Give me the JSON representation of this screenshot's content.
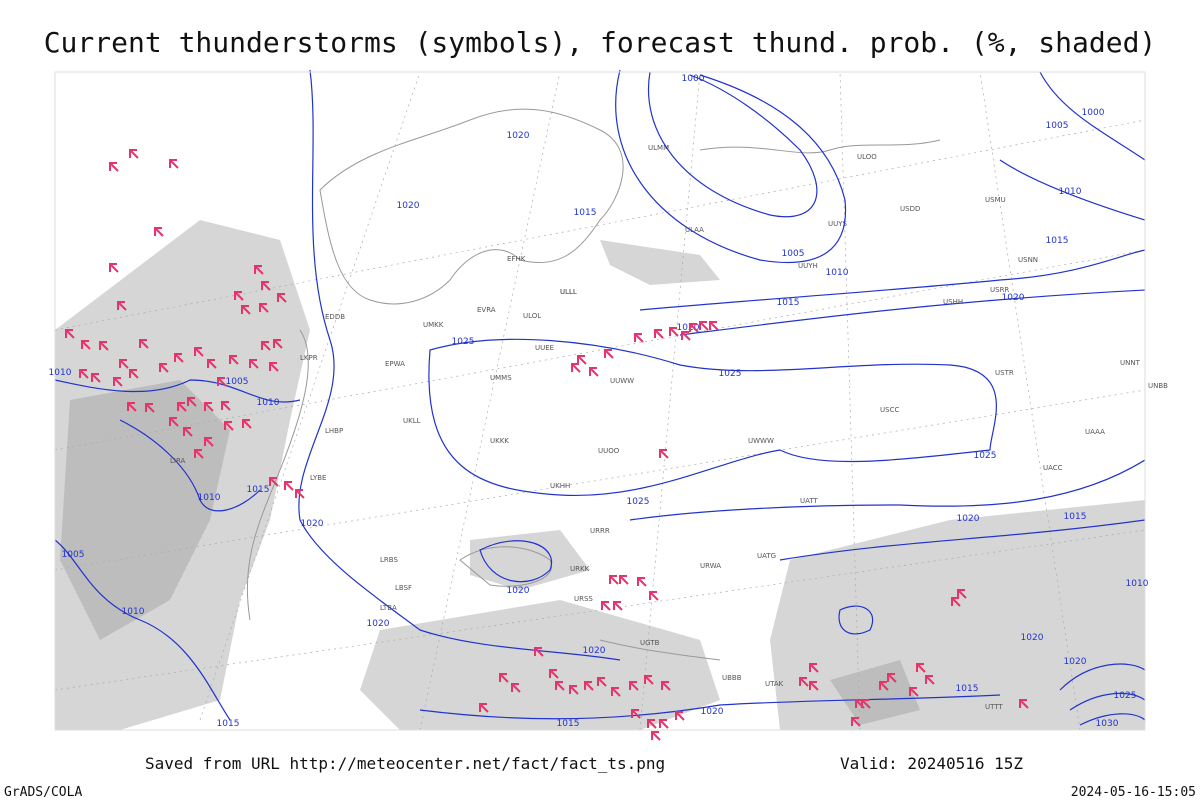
{
  "header": {
    "title": "Current thunderstorms (symbols), forecast thund. prob. (%, shaded)"
  },
  "isobar_labels": [
    "1000",
    "1020",
    "1020",
    "1015",
    "1005",
    "1010",
    "1015",
    "1020",
    "1015",
    "1010",
    "1005",
    "1000",
    "1025",
    "1020",
    "1025",
    "1025",
    "1025",
    "1020",
    "1015",
    "1005",
    "1010",
    "1010",
    "1015",
    "1020",
    "1005",
    "1010",
    "1020",
    "1020",
    "1020",
    "1015",
    "1015",
    "1020",
    "1015",
    "1020",
    "1020",
    "1025",
    "1030",
    "1010",
    "1010"
  ],
  "stations": [
    "ULMM",
    "ULOO",
    "ULAA",
    "UUYS",
    "USDD",
    "USMU",
    "UUYH",
    "USRR",
    "USNN",
    "USHH",
    "ULLI",
    "EFHK",
    "ULLL",
    "EVRA",
    "ULOL",
    "UUEE",
    "UUWW",
    "UMMS",
    "UMKK",
    "EPWA",
    "UKLL",
    "UKKK",
    "UKHH",
    "UUOO",
    "URRR",
    "URKK",
    "URSS",
    "UGTB",
    "UBBB",
    "UATT",
    "UACC",
    "UAAA",
    "UTTT",
    "UNNT",
    "UNBB",
    "USTR",
    "USCC",
    "UWWW",
    "URWA",
    "UATG",
    "UTAK",
    "LTBA",
    "LBSF",
    "LRBS",
    "LYBE",
    "LHBP",
    "LKPR",
    "EDDB",
    "LIRA"
  ],
  "footer": {
    "source": "Saved from URL http://meteocenter.net/fact/fact_ts.png",
    "valid": "Valid: 20240516 15Z",
    "software": "GrADS/COLA",
    "timestamp": "2024-05-16-15:05"
  }
}
